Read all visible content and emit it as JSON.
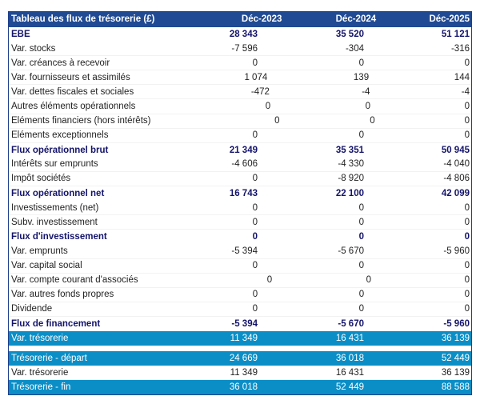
{
  "table": {
    "title": "Tableau des flux de trésorerie (£)",
    "columns": [
      "Déc-2023",
      "Déc-2024",
      "Déc-2025"
    ],
    "rows": [
      {
        "label": "EBE",
        "values": [
          "28 343",
          "35 520",
          "51 121"
        ],
        "style": "bold"
      },
      {
        "label": "Var. stocks",
        "values": [
          "-7 596",
          "-304",
          "-316"
        ],
        "style": "norm"
      },
      {
        "label": "Var. créances à recevoir",
        "values": [
          "0",
          "0",
          "0"
        ],
        "style": "norm"
      },
      {
        "label": "Var. fournisseurs et assimilés",
        "values": [
          "1 074",
          "139",
          "144"
        ],
        "style": "norm"
      },
      {
        "label": "Var. dettes fiscales et sociales",
        "values": [
          "-472",
          "-4",
          "-4"
        ],
        "style": "norm"
      },
      {
        "label": "Autres éléments opérationnels",
        "values": [
          "0",
          "0",
          "0"
        ],
        "style": "norm"
      },
      {
        "label": "Eléments financiers (hors intérêts)",
        "values": [
          "0",
          "0",
          "0"
        ],
        "style": "norm"
      },
      {
        "label": "Eléments exceptionnels",
        "values": [
          "0",
          "0",
          "0"
        ],
        "style": "norm"
      },
      {
        "label": "Flux opérationnel brut",
        "values": [
          "21 349",
          "35 351",
          "50 945"
        ],
        "style": "bold"
      },
      {
        "label": "Intérêts sur emprunts",
        "values": [
          "-4 606",
          "-4 330",
          "-4 040"
        ],
        "style": "norm"
      },
      {
        "label": "Impôt sociétés",
        "values": [
          "0",
          "-8 920",
          "-4 806"
        ],
        "style": "norm"
      },
      {
        "label": "Flux opérationnel net",
        "values": [
          "16 743",
          "22 100",
          "42 099"
        ],
        "style": "bold"
      },
      {
        "label": "Investissements (net)",
        "values": [
          "0",
          "0",
          "0"
        ],
        "style": "norm"
      },
      {
        "label": "Subv. investissement",
        "values": [
          "0",
          "0",
          "0"
        ],
        "style": "norm"
      },
      {
        "label": "Flux d'investissement",
        "values": [
          "0",
          "0",
          "0"
        ],
        "style": "bold"
      },
      {
        "label": "Var. emprunts",
        "values": [
          "-5 394",
          "-5 670",
          "-5 960"
        ],
        "style": "norm"
      },
      {
        "label": "Var. capital social",
        "values": [
          "0",
          "0",
          "0"
        ],
        "style": "norm"
      },
      {
        "label": "Var. compte courant d'associés",
        "values": [
          "0",
          "0",
          "0"
        ],
        "style": "norm"
      },
      {
        "label": "Var. autres fonds propres",
        "values": [
          "0",
          "0",
          "0"
        ],
        "style": "norm"
      },
      {
        "label": "Dividende",
        "values": [
          "0",
          "0",
          "0"
        ],
        "style": "norm"
      },
      {
        "label": "Flux de financement",
        "values": [
          "-5 394",
          "-5 670",
          "-5 960"
        ],
        "style": "bold"
      },
      {
        "label": "Var. trésorerie",
        "values": [
          "11 349",
          "16 431",
          "36 139"
        ],
        "style": "hl"
      },
      {
        "gap": true
      },
      {
        "label": "Trésorerie - départ",
        "values": [
          "24 669",
          "36 018",
          "52 449"
        ],
        "style": "hl"
      },
      {
        "label": "Var. trésorerie",
        "values": [
          "11 349",
          "16 431",
          "36 139"
        ],
        "style": "norm"
      },
      {
        "label": "Trésorerie - fin",
        "values": [
          "36 018",
          "52 449",
          "88 588"
        ],
        "style": "hl"
      }
    ]
  },
  "colors": {
    "header": "#204a93",
    "highlight": "#0b8ec6",
    "bold_text": "#14146b"
  }
}
